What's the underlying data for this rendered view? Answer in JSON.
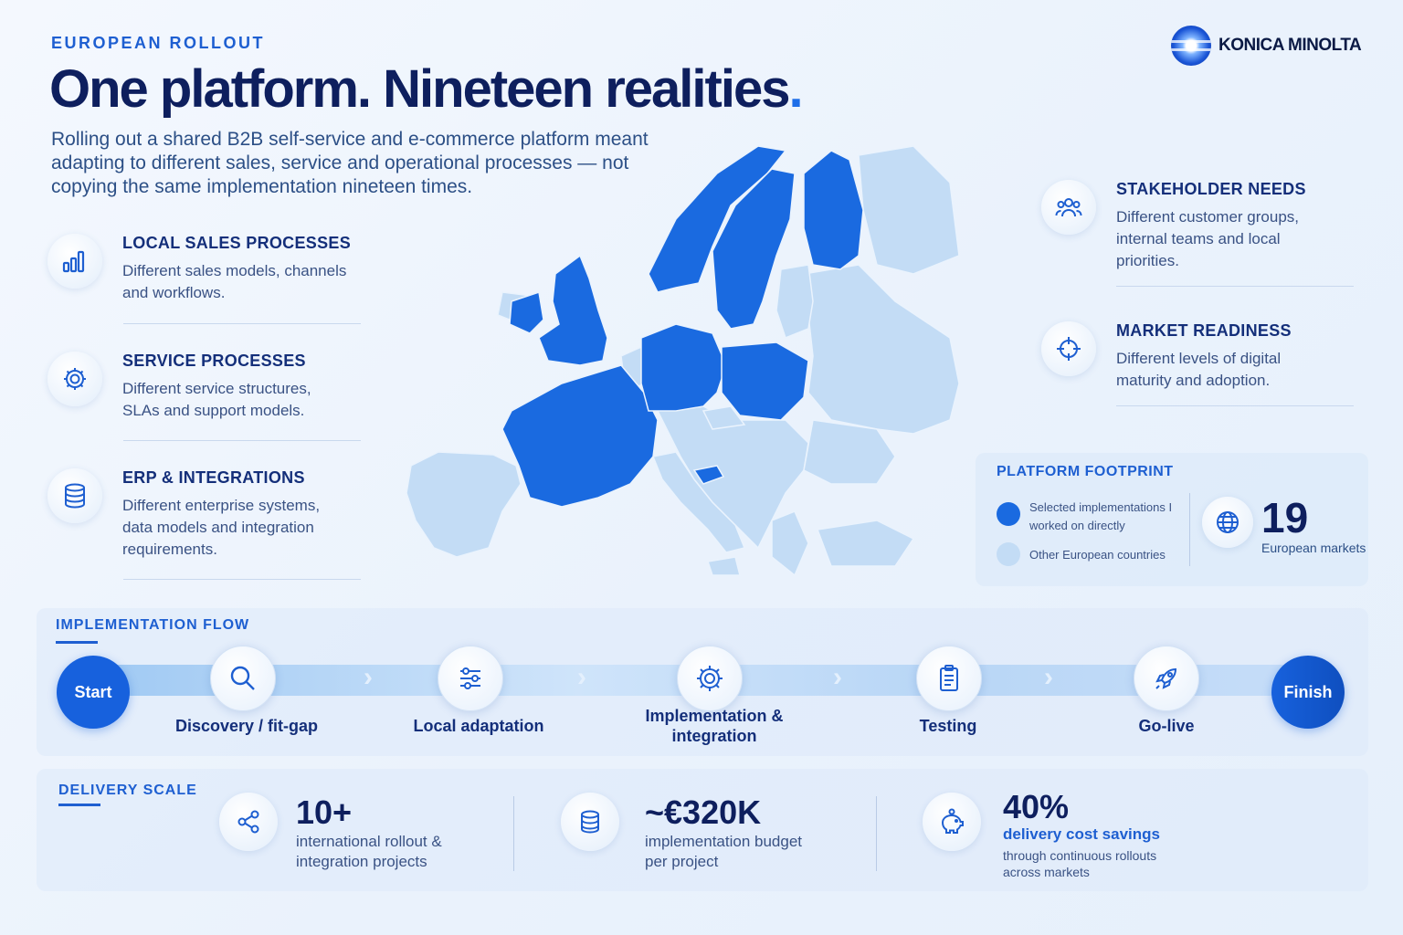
{
  "header": {
    "eyebrow": "EUROPEAN ROLLOUT",
    "headline": "One platform. Nineteen realities",
    "headline_dot": ".",
    "intro": "Rolling out a shared B2B self-service and e-commerce platform meant adapting to different sales, service and operational processes — not copying the same implementation nineteen times."
  },
  "logo": {
    "text": "KONICA MINOLTA"
  },
  "left_features": [
    {
      "title": "LOCAL SALES PROCESSES",
      "desc": "Different sales models, channels and workflows.",
      "icon": "bar-chart-icon"
    },
    {
      "title": "SERVICE PROCESSES",
      "desc": "Different service structures, SLAs and support models.",
      "icon": "gear-icon"
    },
    {
      "title": "ERP & INTEGRATIONS",
      "desc": "Different enterprise systems, data models and integration requirements.",
      "icon": "database-icon"
    }
  ],
  "right_features": [
    {
      "title": "STAKEHOLDER NEEDS",
      "desc": "Different customer groups, internal teams and local priorities.",
      "icon": "people-icon"
    },
    {
      "title": "MARKET READINESS",
      "desc": "Different levels of digital maturity and adoption.",
      "icon": "crosshair-icon"
    }
  ],
  "footprint": {
    "title": "PLATFORM FOOTPRINT",
    "legend_selected": "Selected implementations I worked on directly",
    "legend_other": "Other European countries",
    "count": "19",
    "count_label": "European markets",
    "selected_color": "#1a6ae0",
    "other_color": "#c3dcf5"
  },
  "flow": {
    "label": "IMPLEMENTATION FLOW",
    "start": "Start",
    "finish": "Finish",
    "steps": [
      {
        "label": "Discovery / fit-gap",
        "icon": "search-icon"
      },
      {
        "label": "Local adaptation",
        "icon": "sliders-icon"
      },
      {
        "label": "Implementation & integration",
        "icon": "gear-icon"
      },
      {
        "label": "Testing",
        "icon": "clipboard-icon"
      },
      {
        "label": "Go-live",
        "icon": "rocket-icon"
      }
    ]
  },
  "scale": {
    "label": "DELIVERY SCALE",
    "stats": [
      {
        "value": "10+",
        "desc": "international rollout & integration projects",
        "icon": "share-icon"
      },
      {
        "value": "~€320K",
        "desc": "implementation budget per project",
        "icon": "coins-icon"
      },
      {
        "value": "40%",
        "strong": "delivery cost savings",
        "sub": "through continuous rollouts across markets",
        "icon": "piggy-bank-icon"
      }
    ]
  }
}
